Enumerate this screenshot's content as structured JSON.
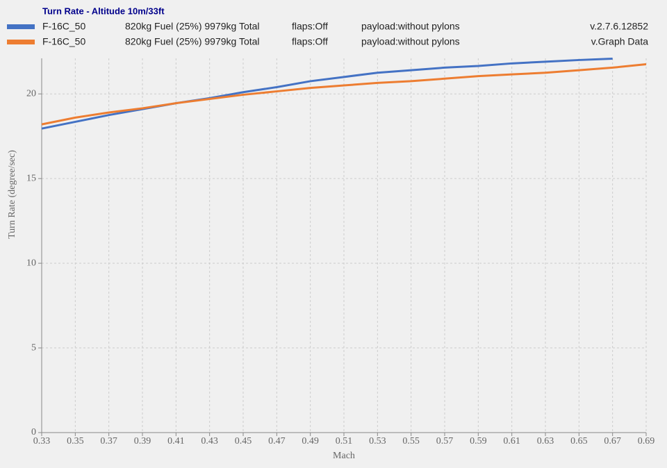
{
  "chart_data": {
    "type": "line",
    "title": "Turn Rate - Altitude 10m/33ft",
    "xlabel": "Mach",
    "ylabel": "Turn Rate (degree/sec)",
    "x": [
      0.33,
      0.35,
      0.37,
      0.39,
      0.41,
      0.43,
      0.45,
      0.47,
      0.49,
      0.51,
      0.53,
      0.55,
      0.57,
      0.59,
      0.61,
      0.63,
      0.65,
      0.67,
      0.69
    ],
    "series": [
      {
        "name": "F-16C_50",
        "color": "#4472c4",
        "fuel": "820kg Fuel (25%) 9979kg Total",
        "flaps": "flaps:Off",
        "payload": "payload:without pylons",
        "version": "v.2.7.6.12852",
        "values": [
          17.95,
          18.35,
          18.75,
          19.1,
          19.45,
          19.75,
          20.1,
          20.4,
          20.75,
          21.0,
          21.25,
          21.4,
          21.55,
          21.65,
          21.8,
          21.9,
          22.0,
          22.08,
          null
        ]
      },
      {
        "name": "F-16C_50",
        "color": "#ed7d31",
        "fuel": "820kg Fuel (25%) 9979kg Total",
        "flaps": "flaps:Off",
        "payload": "payload:without pylons",
        "version": "v.Graph Data",
        "values": [
          18.2,
          18.6,
          18.9,
          19.15,
          19.45,
          19.7,
          19.95,
          20.15,
          20.35,
          20.5,
          20.65,
          20.75,
          20.9,
          21.05,
          21.15,
          21.25,
          21.4,
          21.55,
          21.75
        ]
      }
    ],
    "xlim": [
      0.33,
      0.69
    ],
    "xticks": [
      0.33,
      0.35,
      0.37,
      0.39,
      0.41,
      0.43,
      0.45,
      0.47,
      0.49,
      0.51,
      0.53,
      0.55,
      0.57,
      0.59,
      0.61,
      0.63,
      0.65,
      0.67,
      0.69
    ],
    "ylim": [
      0,
      22.1
    ],
    "yticks": [
      0,
      5,
      10,
      15,
      20
    ],
    "grid": true
  }
}
